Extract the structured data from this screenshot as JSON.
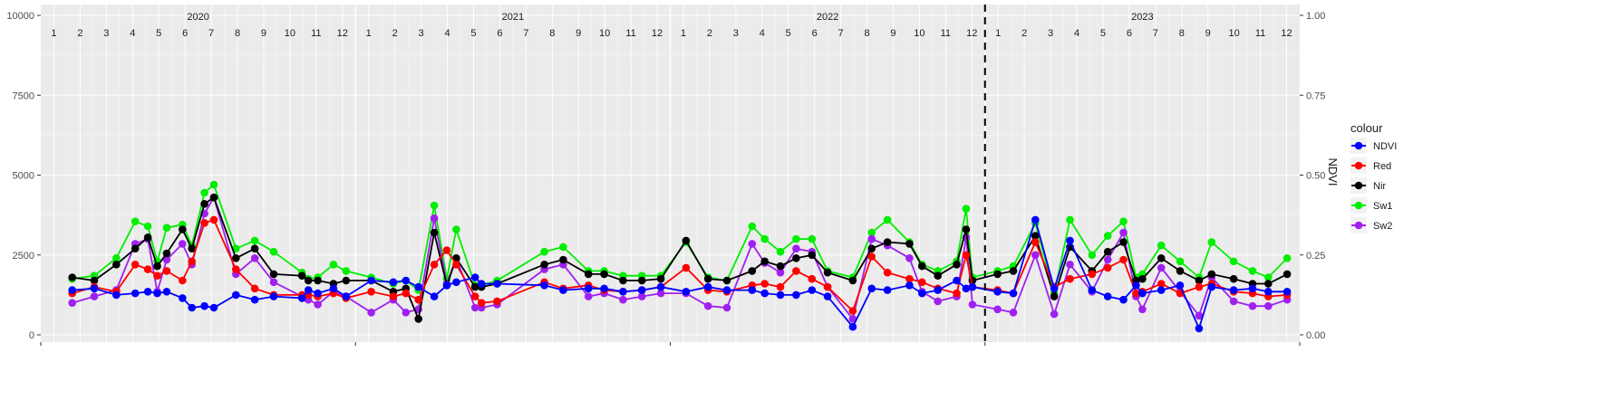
{
  "chart_data": {
    "type": "line",
    "title": "",
    "xlabel": "",
    "ylabel": "",
    "y2label": "NDVI",
    "ylim": [
      0,
      10000
    ],
    "y2lim": [
      0,
      1
    ],
    "y_ticks": [
      "0",
      "2500",
      "5000",
      "7500",
      "10000"
    ],
    "y2_ticks": [
      "0.00",
      "0.25",
      "0.50",
      "0.75",
      "1.00"
    ],
    "grid": true,
    "legend_position": "right",
    "legend_title": "colour",
    "years": [
      "2020",
      "2021",
      "2022",
      "2023"
    ],
    "months": [
      "1",
      "2",
      "3",
      "4",
      "5",
      "6",
      "7",
      "8",
      "9",
      "10",
      "11",
      "12"
    ],
    "vline_x": 2023.0,
    "x_start": 2020.0,
    "x_end": 2024.0,
    "colors": {
      "NDVI": "#0000ff",
      "Red": "#ff0000",
      "Nir": "#000000",
      "Sw1": "#00ee00",
      "Sw2": "#a020f0"
    },
    "x": [
      2020.1,
      2020.17,
      2020.24,
      2020.3,
      2020.34,
      2020.37,
      2020.4,
      2020.45,
      2020.48,
      2020.52,
      2020.55,
      2020.62,
      2020.68,
      2020.74,
      2020.83,
      2020.85,
      2020.88,
      2020.93,
      2020.97,
      2021.05,
      2021.12,
      2021.16,
      2021.2,
      2021.25,
      2021.29,
      2021.32,
      2021.38,
      2021.4,
      2021.45,
      2021.6,
      2021.66,
      2021.74,
      2021.79,
      2021.85,
      2021.91,
      2021.97,
      2022.05,
      2022.12,
      2022.18,
      2022.26,
      2022.3,
      2022.35,
      2022.4,
      2022.45,
      2022.5,
      2022.58,
      2022.64,
      2022.69,
      2022.76,
      2022.8,
      2022.85,
      2022.91,
      2022.94,
      2022.96,
      2023.04,
      2023.09,
      2023.16,
      2023.22,
      2023.27,
      2023.34,
      2023.39,
      2023.44,
      2023.48,
      2023.5,
      2023.56,
      2023.62,
      2023.68,
      2023.72,
      2023.79,
      2023.85,
      2023.9,
      2023.96
    ],
    "series": [
      {
        "name": "NDVI",
        "values": [
          1400,
          1450,
          1250,
          1300,
          1350,
          1300,
          1350,
          1150,
          850,
          900,
          850,
          1250,
          1100,
          1200,
          1150,
          1400,
          1300,
          1450,
          1200,
          1700,
          1650,
          1700,
          1500,
          1200,
          1550,
          1650,
          1800,
          1600,
          1600,
          1550,
          1400,
          1450,
          1450,
          1350,
          1400,
          1500,
          1350,
          1500,
          1400,
          1400,
          1300,
          1250,
          1250,
          1400,
          1200,
          250,
          1450,
          1400,
          1550,
          1300,
          1400,
          1700,
          1450,
          1500,
          1350,
          1300,
          3600,
          1450,
          2950,
          1400,
          1200,
          1100,
          1550,
          1300,
          1400,
          1550,
          200,
          1500,
          1400,
          1450,
          1350,
          1350
        ]
      },
      {
        "name": "Red",
        "values": [
          1300,
          1500,
          1350,
          2200,
          2050,
          1850,
          2000,
          1700,
          2300,
          3500,
          3600,
          2050,
          1450,
          1250,
          1250,
          1250,
          1200,
          1300,
          1150,
          1350,
          1200,
          1300,
          1100,
          2200,
          2650,
          2200,
          1200,
          1000,
          1050,
          1650,
          1450,
          1550,
          1400,
          1350,
          1400,
          1500,
          2100,
          1400,
          1350,
          1550,
          1600,
          1500,
          2000,
          1750,
          1500,
          750,
          2450,
          1950,
          1750,
          1650,
          1450,
          1300,
          2500,
          1500,
          1400,
          1300,
          2900,
          1500,
          1750,
          1900,
          2100,
          2350,
          1300,
          1350,
          1600,
          1300,
          1500,
          1600,
          1350,
          1300,
          1200,
          1250
        ]
      },
      {
        "name": "Nir",
        "values": [
          1800,
          1700,
          2200,
          2700,
          3050,
          2150,
          2550,
          3300,
          2700,
          4100,
          4300,
          2400,
          2700,
          1900,
          1850,
          1700,
          1700,
          1600,
          1700,
          1700,
          1350,
          1450,
          500,
          3200,
          1550,
          2400,
          1500,
          1500,
          1600,
          2200,
          2350,
          1900,
          1900,
          1700,
          1700,
          1750,
          2950,
          1750,
          1700,
          2000,
          2300,
          2150,
          2400,
          2500,
          1950,
          1700,
          2700,
          2900,
          2850,
          2150,
          1850,
          2200,
          3300,
          1700,
          1900,
          2000,
          3100,
          1200,
          2750,
          2000,
          2600,
          2900,
          1700,
          1750,
          2400,
          2000,
          1700,
          1900,
          1750,
          1600,
          1600,
          1900
        ]
      },
      {
        "name": "Sw1",
        "values": [
          1750,
          1850,
          2400,
          3550,
          3400,
          2300,
          3350,
          3450,
          2800,
          4450,
          4700,
          2700,
          2950,
          2600,
          1950,
          1750,
          1800,
          2200,
          2000,
          1800,
          1600,
          1700,
          1400,
          4050,
          1750,
          3300,
          1550,
          1550,
          1700,
          2600,
          2750,
          2000,
          2000,
          1850,
          1850,
          1850,
          2900,
          1800,
          1700,
          3400,
          3000,
          2600,
          3000,
          3000,
          2000,
          1800,
          3200,
          3600,
          2900,
          2200,
          2000,
          2300,
          3950,
          1800,
          2000,
          2150,
          3500,
          1300,
          3600,
          2500,
          3100,
          3550,
          1800,
          1900,
          2800,
          2300,
          1800,
          2900,
          2300,
          2000,
          1800,
          2400
        ]
      },
      {
        "name": "Sw2",
        "values": [
          1000,
          1200,
          1400,
          2850,
          3000,
          1350,
          2350,
          2850,
          2200,
          3800,
          4300,
          1900,
          2400,
          1650,
          1200,
          1100,
          950,
          1350,
          1200,
          700,
          1100,
          700,
          800,
          3650,
          1600,
          2400,
          850,
          850,
          950,
          2050,
          2200,
          1200,
          1300,
          1100,
          1200,
          1300,
          1300,
          900,
          850,
          2850,
          2250,
          1950,
          2700,
          2600,
          1500,
          500,
          3000,
          2800,
          2400,
          1350,
          1050,
          1200,
          3050,
          950,
          800,
          700,
          2500,
          650,
          2200,
          1350,
          2350,
          3200,
          1200,
          800,
          2100,
          1350,
          600,
          1800,
          1050,
          900,
          900,
          1100
        ]
      }
    ]
  }
}
